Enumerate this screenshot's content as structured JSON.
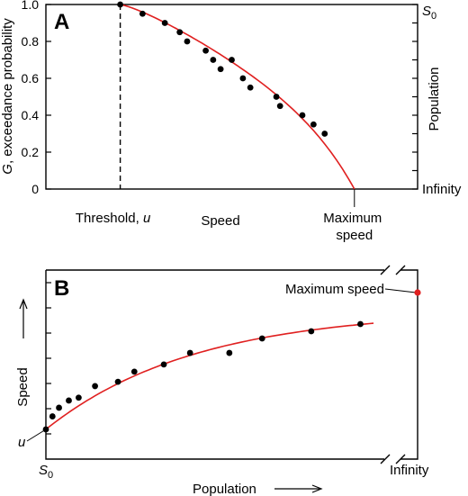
{
  "chart_data": [
    {
      "panel": "A",
      "type": "line",
      "ylabel_italic": "G",
      "ylabel_rest": ", exceedance probability",
      "right_label": "Population",
      "right_top_main": "S",
      "right_top_sub": "0",
      "right_bottom": "Infinity",
      "xlabel": "Speed",
      "threshold_label": "Threshold, ",
      "threshold_var": "u",
      "max_label_1": "Maximum",
      "max_label_2": "speed",
      "yticks": [
        "0",
        "0.2",
        "0.4",
        "0.6",
        "0.8",
        "1.0"
      ],
      "ylim": [
        0,
        1
      ],
      "xlim": [
        0,
        1
      ],
      "threshold_x": 0.2,
      "max_speed_x": 0.83,
      "points": [
        {
          "x": 0.2,
          "y": 1.0
        },
        {
          "x": 0.26,
          "y": 0.95
        },
        {
          "x": 0.32,
          "y": 0.9
        },
        {
          "x": 0.36,
          "y": 0.85
        },
        {
          "x": 0.38,
          "y": 0.8
        },
        {
          "x": 0.43,
          "y": 0.75
        },
        {
          "x": 0.45,
          "y": 0.7
        },
        {
          "x": 0.47,
          "y": 0.65
        },
        {
          "x": 0.5,
          "y": 0.7
        },
        {
          "x": 0.53,
          "y": 0.6
        },
        {
          "x": 0.55,
          "y": 0.55
        },
        {
          "x": 0.62,
          "y": 0.5
        },
        {
          "x": 0.63,
          "y": 0.45
        },
        {
          "x": 0.69,
          "y": 0.4
        },
        {
          "x": 0.72,
          "y": 0.35
        },
        {
          "x": 0.75,
          "y": 0.3
        }
      ],
      "curve_color": "#e02020"
    },
    {
      "panel": "B",
      "type": "line",
      "ylabel": "Speed",
      "xlabel": "Population",
      "x_start_main": "S",
      "x_start_sub": "0",
      "x_end": "Infinity",
      "u_label": "u",
      "max_label": "Maximum speed",
      "max_point_color": "#e02020",
      "curve_color": "#e02020",
      "points": [
        {
          "x": 0.0,
          "y": 0.0
        },
        {
          "x": 0.02,
          "y": 0.09
        },
        {
          "x": 0.04,
          "y": 0.15
        },
        {
          "x": 0.07,
          "y": 0.2
        },
        {
          "x": 0.1,
          "y": 0.22
        },
        {
          "x": 0.15,
          "y": 0.3
        },
        {
          "x": 0.22,
          "y": 0.33
        },
        {
          "x": 0.27,
          "y": 0.4
        },
        {
          "x": 0.36,
          "y": 0.45
        },
        {
          "x": 0.44,
          "y": 0.53
        },
        {
          "x": 0.56,
          "y": 0.53
        },
        {
          "x": 0.66,
          "y": 0.63
        },
        {
          "x": 0.81,
          "y": 0.68
        },
        {
          "x": 0.96,
          "y": 0.73
        }
      ]
    }
  ]
}
